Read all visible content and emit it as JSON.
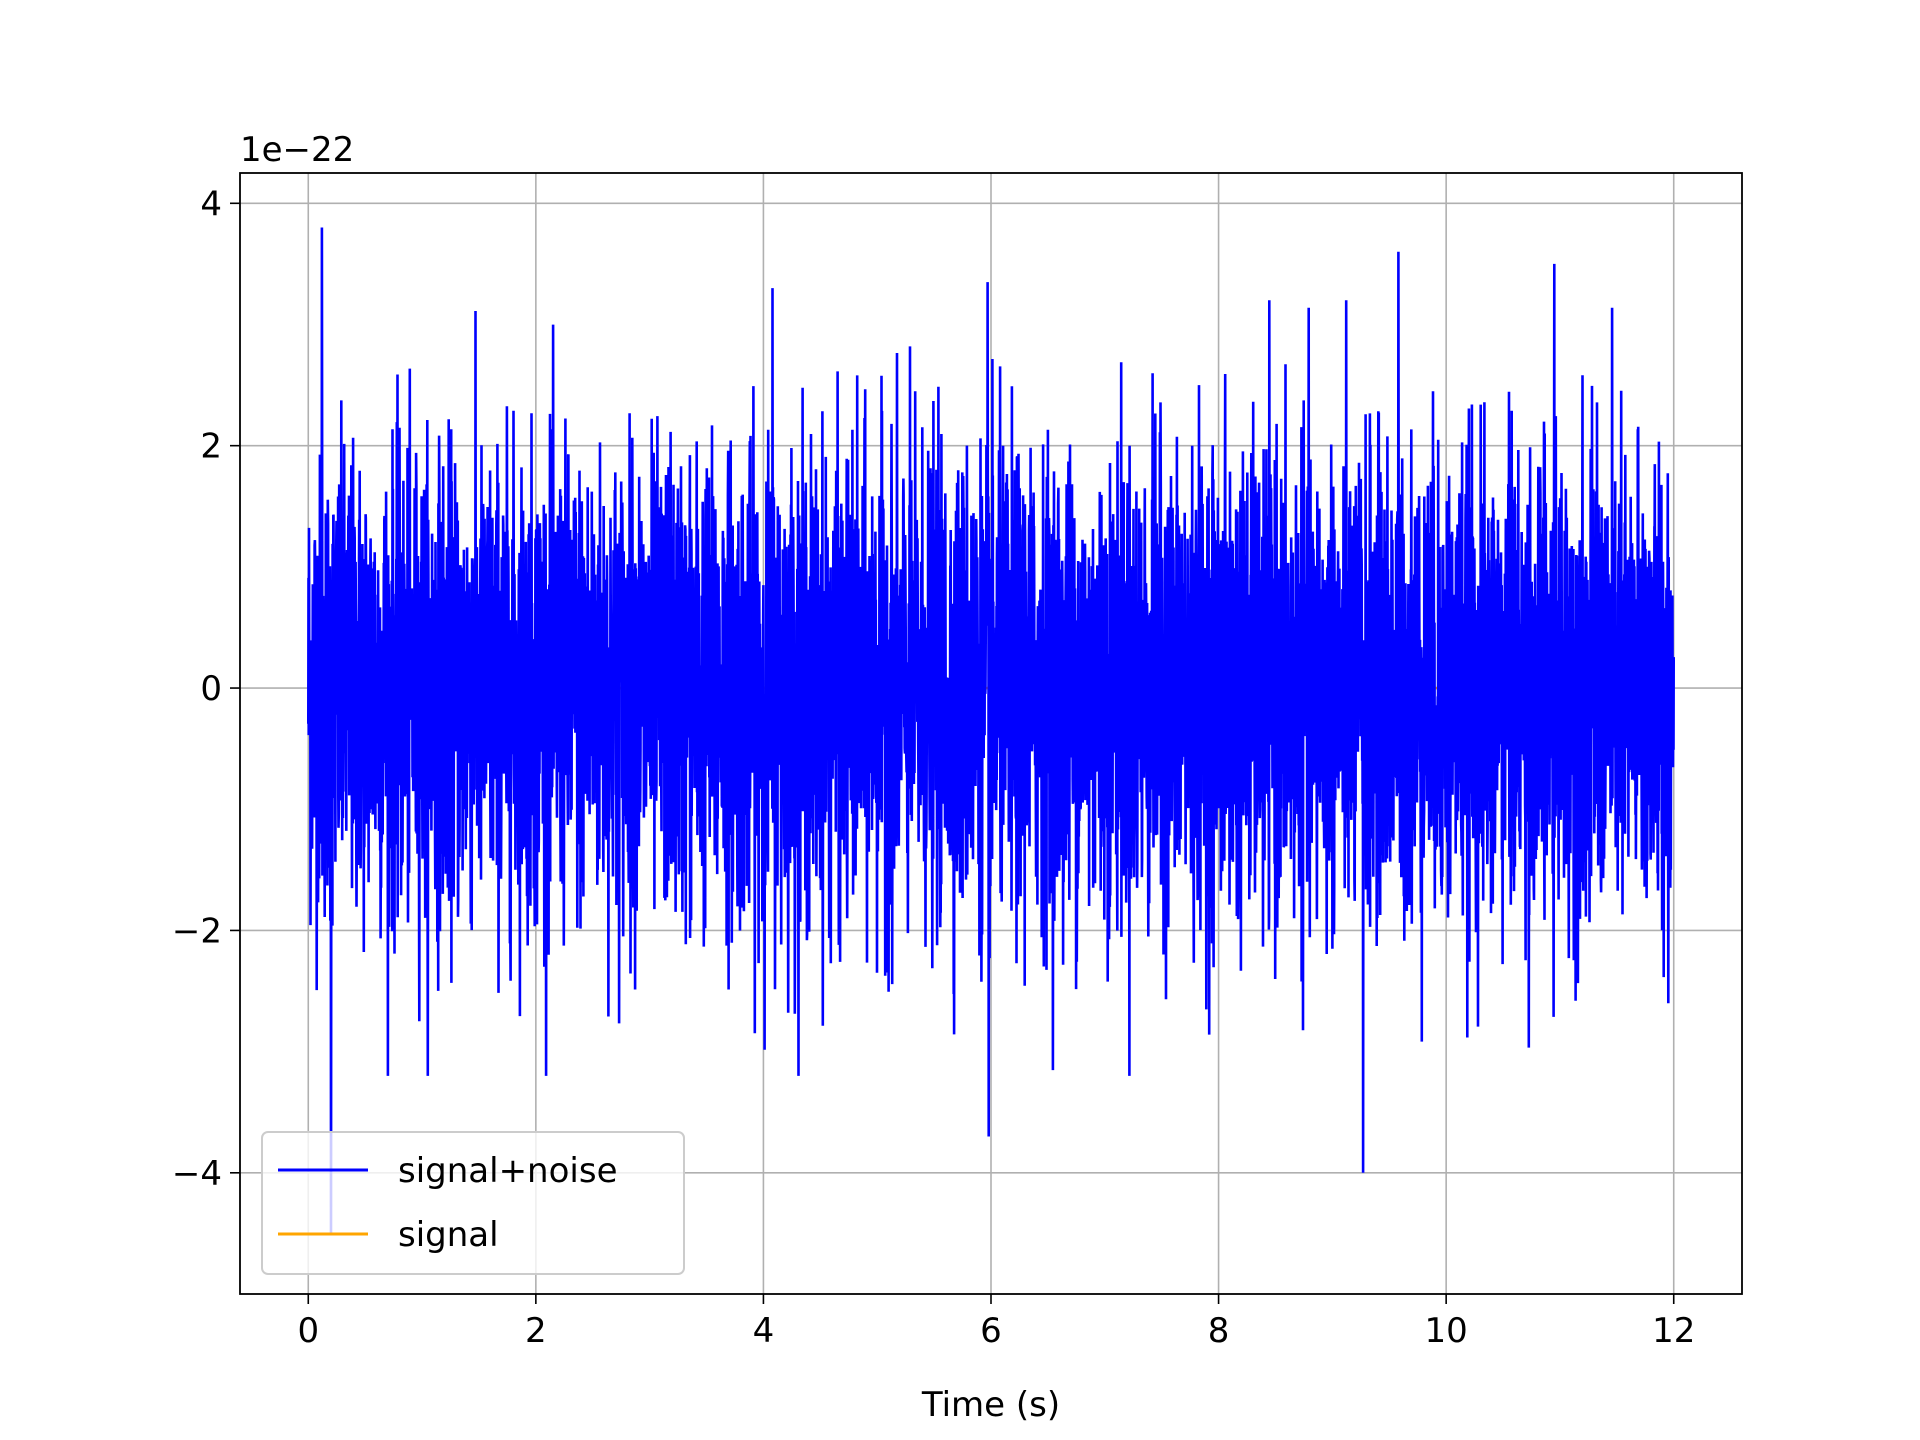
{
  "chart_data": {
    "type": "line",
    "title": "",
    "xlabel": "Time (s)",
    "ylabel": "",
    "y_offset_label": "1e−22",
    "y_scale": 1e-22,
    "xlim": [
      -0.6,
      12.6
    ],
    "ylim": [
      -5e-22,
      4.25e-22
    ],
    "x_ticks": [
      0,
      2,
      4,
      6,
      8,
      10,
      12
    ],
    "x_tick_labels": [
      "0",
      "2",
      "4",
      "6",
      "8",
      "10",
      "12"
    ],
    "y_ticks": [
      -4e-22,
      -2e-22,
      0,
      2e-22,
      4e-22
    ],
    "y_tick_labels": [
      "−4",
      "−2",
      "0",
      "2",
      "4"
    ],
    "grid": true,
    "legend_position": "lower-left",
    "series": [
      {
        "name": "signal+noise",
        "color": "#0000ff",
        "x_range": [
          0,
          12
        ],
        "noise_envelope": [
          -2.4e-22,
          2.5e-22
        ],
        "extremes": [
          {
            "x": 0.12,
            "y": 3.8e-22
          },
          {
            "x": 0.2,
            "y": -4.5e-22
          },
          {
            "x": 4.08,
            "y": -3.85e-22
          },
          {
            "x": 9.27,
            "y": -4e-22
          },
          {
            "x": 9.58,
            "y": 3.6e-22
          },
          {
            "x": 10.95,
            "y": 3.5e-22
          },
          {
            "x": 5.98,
            "y": -3.7e-22
          },
          {
            "x": 5.97,
            "y": 3.35e-22
          },
          {
            "x": 4.08,
            "y": 3.3e-22
          }
        ]
      },
      {
        "name": "signal",
        "color": "#ffa500",
        "x_range": [
          0,
          12
        ],
        "values_constant": 0
      }
    ]
  }
}
